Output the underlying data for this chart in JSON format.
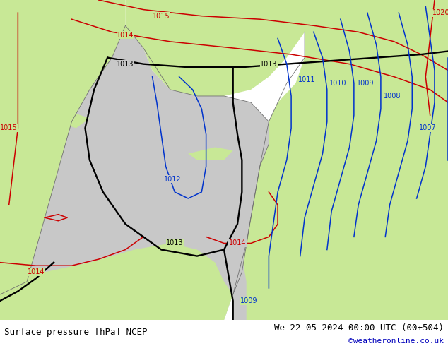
{
  "title_left": "Surface pressure [hPa] NCEP",
  "title_right": "We 22-05-2024 00:00 UTC (00+504)",
  "credit": "©weatheronline.co.uk",
  "bg_green": "#c8e896",
  "sea_grey": "#c8c8c8",
  "coast_color": "#808080",
  "bottom_bar_color": "#ffffff",
  "bottom_text_color": "#000000",
  "credit_color": "#0000bb",
  "font_size_bottom": 9,
  "col_red": "#cc0000",
  "col_blue": "#0033cc",
  "col_black": "#000000",
  "lw_red": 1.1,
  "lw_blue": 1.1,
  "lw_black": 1.7,
  "label_fs": 7.0
}
